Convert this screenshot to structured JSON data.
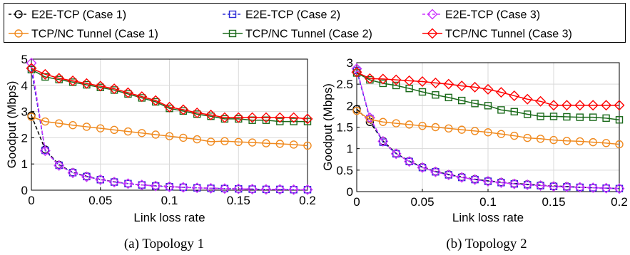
{
  "chart_data": [
    {
      "type": "line",
      "caption": "(a) Topology 1",
      "xlabel": "Link loss rate",
      "ylabel": "Goodput (Mbps)",
      "xlim": [
        0,
        0.2
      ],
      "ylim": [
        0,
        5
      ],
      "xticks": [
        0,
        0.05,
        0.1,
        0.15,
        0.2
      ],
      "xtick_labels": [
        "0",
        "0.05",
        "0.1",
        "0.15",
        "0.2"
      ],
      "yticks": [
        0,
        1,
        2,
        3,
        4,
        5
      ],
      "ytick_labels": [
        "0",
        "1",
        "2",
        "3",
        "4",
        "5"
      ],
      "grid": true,
      "x": [
        0,
        0.01,
        0.02,
        0.03,
        0.04,
        0.05,
        0.06,
        0.07,
        0.08,
        0.09,
        0.1,
        0.11,
        0.12,
        0.13,
        0.14,
        0.15,
        0.16,
        0.17,
        0.18,
        0.19,
        0.2
      ],
      "series": [
        {
          "name": "E2E-TCP (Case 1)",
          "values": [
            2.85,
            1.55,
            0.97,
            0.68,
            0.53,
            0.41,
            0.32,
            0.25,
            0.2,
            0.17,
            0.14,
            0.11,
            0.09,
            0.07,
            0.06,
            0.05,
            0.04,
            0.03,
            0.03,
            0.02,
            0.02
          ]
        },
        {
          "name": "E2E-TCP (Case 2)",
          "values": [
            4.6,
            1.52,
            0.95,
            0.67,
            0.52,
            0.4,
            0.31,
            0.25,
            0.2,
            0.16,
            0.13,
            0.11,
            0.09,
            0.07,
            0.06,
            0.05,
            0.04,
            0.03,
            0.03,
            0.02,
            0.02
          ]
        },
        {
          "name": "E2E-TCP (Case 3)",
          "values": [
            4.85,
            1.5,
            0.94,
            0.66,
            0.51,
            0.4,
            0.31,
            0.25,
            0.2,
            0.16,
            0.13,
            0.11,
            0.09,
            0.07,
            0.06,
            0.05,
            0.04,
            0.03,
            0.03,
            0.02,
            0.02
          ]
        },
        {
          "name": "TCP/NC Tunnel (Case 1)",
          "values": [
            2.8,
            2.62,
            2.55,
            2.48,
            2.42,
            2.36,
            2.3,
            2.24,
            2.18,
            2.12,
            2.06,
            2.0,
            1.94,
            1.85,
            1.87,
            1.84,
            1.82,
            1.79,
            1.77,
            1.74,
            1.7
          ]
        },
        {
          "name": "TCP/NC Tunnel (Case 2)",
          "values": [
            4.6,
            4.32,
            4.22,
            4.12,
            4.02,
            3.92,
            3.82,
            3.67,
            3.52,
            3.37,
            3.12,
            3.02,
            2.9,
            2.82,
            2.72,
            2.72,
            2.67,
            2.67,
            2.62,
            2.62,
            2.62
          ]
        },
        {
          "name": "TCP/NC Tunnel (Case 3)",
          "values": [
            4.65,
            4.42,
            4.27,
            4.17,
            4.07,
            3.97,
            3.87,
            3.72,
            3.57,
            3.42,
            3.17,
            3.07,
            2.95,
            2.87,
            2.77,
            2.77,
            2.77,
            2.77,
            2.77,
            2.77,
            2.72
          ]
        }
      ]
    },
    {
      "type": "line",
      "caption": "(b) Topology 2",
      "xlabel": "Link loss rate",
      "ylabel": "Goodput (Mbps)",
      "xlim": [
        0,
        0.2
      ],
      "ylim": [
        0,
        3
      ],
      "xticks": [
        0,
        0.05,
        0.1,
        0.15,
        0.2
      ],
      "xtick_labels": [
        "0",
        "0.05",
        "0.1",
        "0.15",
        "0.2"
      ],
      "yticks": [
        0,
        0.5,
        1,
        1.5,
        2,
        2.5,
        3
      ],
      "ytick_labels": [
        "0",
        "0.5",
        "1",
        "1.5",
        "2",
        "2.5",
        "3"
      ],
      "grid": true,
      "x": [
        0,
        0.01,
        0.02,
        0.03,
        0.04,
        0.05,
        0.06,
        0.07,
        0.08,
        0.09,
        0.1,
        0.11,
        0.12,
        0.13,
        0.14,
        0.15,
        0.16,
        0.17,
        0.18,
        0.19,
        0.2
      ],
      "series": [
        {
          "name": "E2E-TCP (Case 1)",
          "values": [
            1.92,
            1.62,
            1.18,
            0.89,
            0.71,
            0.57,
            0.47,
            0.4,
            0.34,
            0.29,
            0.25,
            0.22,
            0.19,
            0.17,
            0.15,
            0.13,
            0.12,
            0.1,
            0.09,
            0.08,
            0.07
          ]
        },
        {
          "name": "E2E-TCP (Case 2)",
          "values": [
            2.82,
            1.7,
            1.15,
            0.88,
            0.7,
            0.56,
            0.46,
            0.39,
            0.33,
            0.28,
            0.24,
            0.21,
            0.18,
            0.16,
            0.14,
            0.12,
            0.11,
            0.1,
            0.09,
            0.08,
            0.07
          ]
        },
        {
          "name": "E2E-TCP (Case 3)",
          "values": [
            2.86,
            1.72,
            1.17,
            0.88,
            0.7,
            0.56,
            0.46,
            0.39,
            0.33,
            0.28,
            0.24,
            0.21,
            0.18,
            0.16,
            0.14,
            0.12,
            0.11,
            0.1,
            0.09,
            0.08,
            0.07
          ]
        },
        {
          "name": "TCP/NC Tunnel (Case 1)",
          "values": [
            1.88,
            1.68,
            1.62,
            1.59,
            1.56,
            1.53,
            1.5,
            1.47,
            1.44,
            1.41,
            1.38,
            1.34,
            1.3,
            1.25,
            1.23,
            1.2,
            1.18,
            1.17,
            1.15,
            1.13,
            1.1
          ]
        },
        {
          "name": "TCP/NC Tunnel (Case 2)",
          "values": [
            2.76,
            2.6,
            2.52,
            2.47,
            2.4,
            2.32,
            2.25,
            2.19,
            2.12,
            2.05,
            2.0,
            1.9,
            1.86,
            1.8,
            1.75,
            1.75,
            1.74,
            1.73,
            1.73,
            1.71,
            1.67
          ]
        },
        {
          "name": "TCP/NC Tunnel (Case 3)",
          "values": [
            2.78,
            2.63,
            2.62,
            2.6,
            2.58,
            2.56,
            2.53,
            2.5,
            2.46,
            2.43,
            2.38,
            2.31,
            2.23,
            2.15,
            2.1,
            2.01,
            2.01,
            2.01,
            2.01,
            2.01,
            2.01
          ]
        }
      ]
    }
  ],
  "legend": {
    "placement": "top",
    "entries": [
      {
        "label": "E2E-TCP (Case 1)",
        "color": "#000000",
        "marker": "circle",
        "dash": true
      },
      {
        "label": "E2E-TCP (Case 2)",
        "color": "#2b2bd6",
        "marker": "square",
        "dash": true
      },
      {
        "label": "E2E-TCP (Case 3)",
        "color": "#cc33ff",
        "marker": "diamond",
        "dash": true
      },
      {
        "label": "TCP/NC Tunnel (Case 1)",
        "color": "#f08a1f",
        "marker": "circle",
        "dash": false
      },
      {
        "label": "TCP/NC Tunnel (Case 2)",
        "color": "#1b6a1b",
        "marker": "square",
        "dash": false
      },
      {
        "label": "TCP/NC Tunnel (Case 3)",
        "color": "#ff0000",
        "marker": "diamond",
        "dash": false
      }
    ]
  }
}
